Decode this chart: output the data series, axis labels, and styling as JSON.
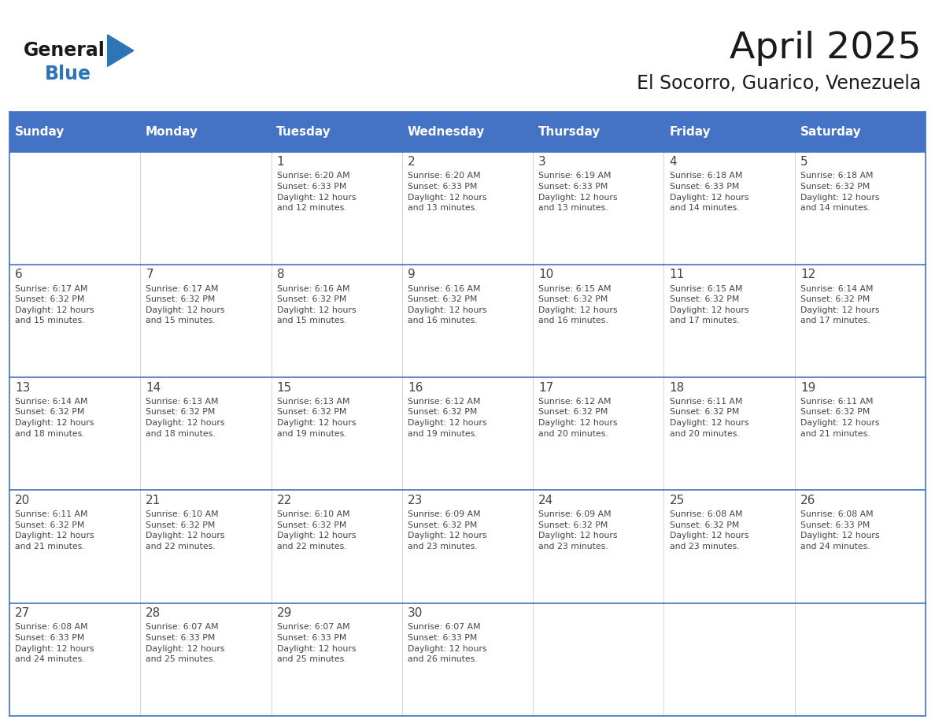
{
  "title": "April 2025",
  "subtitle": "El Socorro, Guarico, Venezuela",
  "days_of_week": [
    "Sunday",
    "Monday",
    "Tuesday",
    "Wednesday",
    "Thursday",
    "Friday",
    "Saturday"
  ],
  "header_bg": "#4472C4",
  "header_text_color": "#FFFFFF",
  "cell_bg_light": "#FFFFFF",
  "border_color": "#4472C4",
  "row_line_color": "#4472C4",
  "text_color": "#444444",
  "title_color": "#1a1a1a",
  "general_color": "#1a1a1a",
  "blue_color": "#2E75B6",
  "weeks": [
    [
      {
        "day": null,
        "info": null
      },
      {
        "day": null,
        "info": null
      },
      {
        "day": 1,
        "info": "Sunrise: 6:20 AM\nSunset: 6:33 PM\nDaylight: 12 hours\nand 12 minutes."
      },
      {
        "day": 2,
        "info": "Sunrise: 6:20 AM\nSunset: 6:33 PM\nDaylight: 12 hours\nand 13 minutes."
      },
      {
        "day": 3,
        "info": "Sunrise: 6:19 AM\nSunset: 6:33 PM\nDaylight: 12 hours\nand 13 minutes."
      },
      {
        "day": 4,
        "info": "Sunrise: 6:18 AM\nSunset: 6:33 PM\nDaylight: 12 hours\nand 14 minutes."
      },
      {
        "day": 5,
        "info": "Sunrise: 6:18 AM\nSunset: 6:32 PM\nDaylight: 12 hours\nand 14 minutes."
      }
    ],
    [
      {
        "day": 6,
        "info": "Sunrise: 6:17 AM\nSunset: 6:32 PM\nDaylight: 12 hours\nand 15 minutes."
      },
      {
        "day": 7,
        "info": "Sunrise: 6:17 AM\nSunset: 6:32 PM\nDaylight: 12 hours\nand 15 minutes."
      },
      {
        "day": 8,
        "info": "Sunrise: 6:16 AM\nSunset: 6:32 PM\nDaylight: 12 hours\nand 15 minutes."
      },
      {
        "day": 9,
        "info": "Sunrise: 6:16 AM\nSunset: 6:32 PM\nDaylight: 12 hours\nand 16 minutes."
      },
      {
        "day": 10,
        "info": "Sunrise: 6:15 AM\nSunset: 6:32 PM\nDaylight: 12 hours\nand 16 minutes."
      },
      {
        "day": 11,
        "info": "Sunrise: 6:15 AM\nSunset: 6:32 PM\nDaylight: 12 hours\nand 17 minutes."
      },
      {
        "day": 12,
        "info": "Sunrise: 6:14 AM\nSunset: 6:32 PM\nDaylight: 12 hours\nand 17 minutes."
      }
    ],
    [
      {
        "day": 13,
        "info": "Sunrise: 6:14 AM\nSunset: 6:32 PM\nDaylight: 12 hours\nand 18 minutes."
      },
      {
        "day": 14,
        "info": "Sunrise: 6:13 AM\nSunset: 6:32 PM\nDaylight: 12 hours\nand 18 minutes."
      },
      {
        "day": 15,
        "info": "Sunrise: 6:13 AM\nSunset: 6:32 PM\nDaylight: 12 hours\nand 19 minutes."
      },
      {
        "day": 16,
        "info": "Sunrise: 6:12 AM\nSunset: 6:32 PM\nDaylight: 12 hours\nand 19 minutes."
      },
      {
        "day": 17,
        "info": "Sunrise: 6:12 AM\nSunset: 6:32 PM\nDaylight: 12 hours\nand 20 minutes."
      },
      {
        "day": 18,
        "info": "Sunrise: 6:11 AM\nSunset: 6:32 PM\nDaylight: 12 hours\nand 20 minutes."
      },
      {
        "day": 19,
        "info": "Sunrise: 6:11 AM\nSunset: 6:32 PM\nDaylight: 12 hours\nand 21 minutes."
      }
    ],
    [
      {
        "day": 20,
        "info": "Sunrise: 6:11 AM\nSunset: 6:32 PM\nDaylight: 12 hours\nand 21 minutes."
      },
      {
        "day": 21,
        "info": "Sunrise: 6:10 AM\nSunset: 6:32 PM\nDaylight: 12 hours\nand 22 minutes."
      },
      {
        "day": 22,
        "info": "Sunrise: 6:10 AM\nSunset: 6:32 PM\nDaylight: 12 hours\nand 22 minutes."
      },
      {
        "day": 23,
        "info": "Sunrise: 6:09 AM\nSunset: 6:32 PM\nDaylight: 12 hours\nand 23 minutes."
      },
      {
        "day": 24,
        "info": "Sunrise: 6:09 AM\nSunset: 6:32 PM\nDaylight: 12 hours\nand 23 minutes."
      },
      {
        "day": 25,
        "info": "Sunrise: 6:08 AM\nSunset: 6:32 PM\nDaylight: 12 hours\nand 23 minutes."
      },
      {
        "day": 26,
        "info": "Sunrise: 6:08 AM\nSunset: 6:33 PM\nDaylight: 12 hours\nand 24 minutes."
      }
    ],
    [
      {
        "day": 27,
        "info": "Sunrise: 6:08 AM\nSunset: 6:33 PM\nDaylight: 12 hours\nand 24 minutes."
      },
      {
        "day": 28,
        "info": "Sunrise: 6:07 AM\nSunset: 6:33 PM\nDaylight: 12 hours\nand 25 minutes."
      },
      {
        "day": 29,
        "info": "Sunrise: 6:07 AM\nSunset: 6:33 PM\nDaylight: 12 hours\nand 25 minutes."
      },
      {
        "day": 30,
        "info": "Sunrise: 6:07 AM\nSunset: 6:33 PM\nDaylight: 12 hours\nand 26 minutes."
      },
      {
        "day": null,
        "info": null
      },
      {
        "day": null,
        "info": null
      },
      {
        "day": null,
        "info": null
      }
    ]
  ]
}
